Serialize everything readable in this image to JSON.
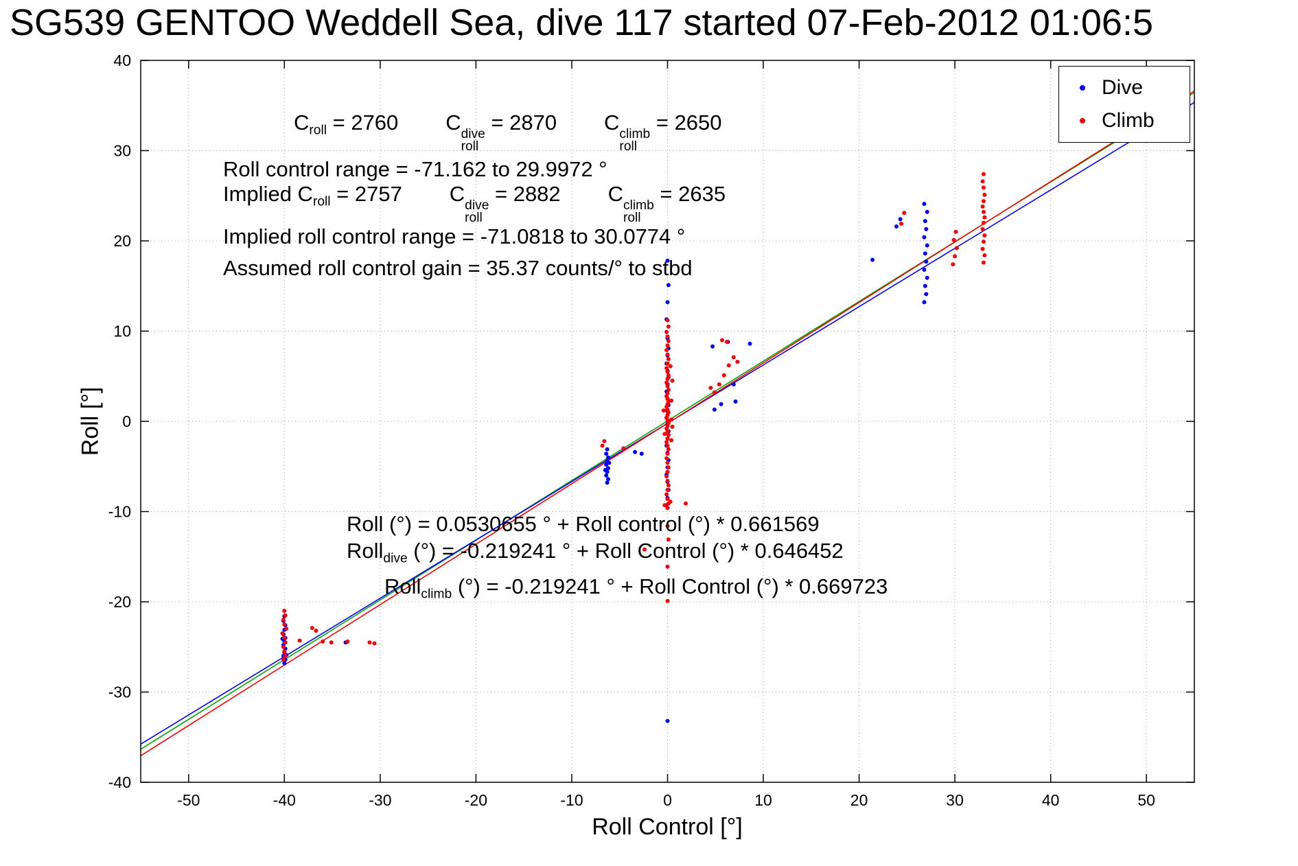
{
  "chart_data": {
    "type": "scatter",
    "title": "SG539 GENTOO Weddell Sea, dive 117 started 07-Feb-2012 01:06:5",
    "xlabel": "Roll Control [°]",
    "ylabel": "Roll [°]",
    "xlim": [
      -55,
      55
    ],
    "ylim": [
      -40,
      40
    ],
    "xticks": [
      -50,
      -40,
      -30,
      -20,
      -10,
      0,
      10,
      20,
      30,
      40,
      50
    ],
    "yticks": [
      -40,
      -30,
      -20,
      -10,
      0,
      10,
      20,
      30,
      40
    ],
    "grid": true,
    "legend_position": "top-right",
    "series": [
      {
        "name": "Dive",
        "color": "#0000ff",
        "marker": "dot",
        "points": [
          [
            -40,
            -21.6
          ],
          [
            -40.1,
            -22.1
          ],
          [
            -39.9,
            -22.6
          ],
          [
            -40,
            -23.1
          ],
          [
            -40.1,
            -23.6
          ],
          [
            -39.9,
            -24
          ],
          [
            -40,
            -24.4
          ],
          [
            -40.1,
            -24.8
          ],
          [
            -39.9,
            -25.2
          ],
          [
            -40,
            -25.6
          ],
          [
            -40.1,
            -26
          ],
          [
            -39.9,
            -26.4
          ],
          [
            -40,
            -26.8
          ],
          [
            -39.8,
            -25.9
          ],
          [
            -40.2,
            -24.1
          ],
          [
            -33.6,
            -24.5
          ],
          [
            -6.3,
            -3.1
          ],
          [
            -6.4,
            -3.6
          ],
          [
            -6.2,
            -4
          ],
          [
            -6.3,
            -4.4
          ],
          [
            -6.4,
            -4.8
          ],
          [
            -6.2,
            -5.2
          ],
          [
            -6.3,
            -5.6
          ],
          [
            -6.4,
            -6
          ],
          [
            -6.2,
            -6.4
          ],
          [
            -6.3,
            -6.8
          ],
          [
            -6.1,
            -4.6
          ],
          [
            -6.5,
            -5.4
          ],
          [
            -3.4,
            -3.4
          ],
          [
            -2.7,
            -3.6
          ],
          [
            0,
            17.8
          ],
          [
            0.1,
            15.1
          ],
          [
            0,
            13.2
          ],
          [
            -0.1,
            11.3
          ],
          [
            0,
            9.2
          ],
          [
            0.1,
            8.1
          ],
          [
            0,
            7.3
          ],
          [
            -0.1,
            6.4
          ],
          [
            0,
            5.6
          ],
          [
            0.1,
            4.9
          ],
          [
            0,
            4.1
          ],
          [
            -0.1,
            3.3
          ],
          [
            0,
            2.5
          ],
          [
            0.1,
            1.8
          ],
          [
            0,
            1.1
          ],
          [
            -0.1,
            0.4
          ],
          [
            0,
            -0.3
          ],
          [
            0.1,
            -1.1
          ],
          [
            0,
            -1.9
          ],
          [
            -0.1,
            -2.7
          ],
          [
            0,
            -3.5
          ],
          [
            0.1,
            -4.3
          ],
          [
            0,
            -5.1
          ],
          [
            -0.1,
            -5.9
          ],
          [
            0,
            -6.7
          ],
          [
            0.1,
            -7.6
          ],
          [
            0,
            -8.5
          ],
          [
            -0.1,
            -9.3
          ],
          [
            0,
            -33.2
          ],
          [
            4.9,
            1.3
          ],
          [
            5.6,
            1.9
          ],
          [
            6.3,
            8.8
          ],
          [
            7.1,
            2.2
          ],
          [
            6.9,
            4.1
          ],
          [
            4.7,
            8.3
          ],
          [
            8.6,
            8.6
          ],
          [
            26.8,
            13.2
          ],
          [
            27,
            14.1
          ],
          [
            26.9,
            15
          ],
          [
            27.1,
            15.9
          ],
          [
            26.8,
            16.8
          ],
          [
            27,
            17.7
          ],
          [
            26.9,
            18.6
          ],
          [
            27.1,
            19.5
          ],
          [
            26.8,
            20.4
          ],
          [
            27,
            21.3
          ],
          [
            26.9,
            22.2
          ],
          [
            27.1,
            23.2
          ],
          [
            26.8,
            24.1
          ],
          [
            23.9,
            21.6
          ],
          [
            24.3,
            22.4
          ],
          [
            21.4,
            17.9
          ]
        ]
      },
      {
        "name": "Climb",
        "color": "#ff0000",
        "marker": "dot",
        "points": [
          [
            -40,
            -21
          ],
          [
            -39.9,
            -21.5
          ],
          [
            -40.1,
            -22
          ],
          [
            -40,
            -22.5
          ],
          [
            -39.8,
            -23
          ],
          [
            -40.2,
            -23.5
          ],
          [
            -40,
            -24
          ],
          [
            -39.9,
            -24.5
          ],
          [
            -40.1,
            -25
          ],
          [
            -40,
            -25.5
          ],
          [
            -39.9,
            -26
          ],
          [
            -40.1,
            -26.4
          ],
          [
            -38.4,
            -24.3
          ],
          [
            -37.1,
            -22.9
          ],
          [
            -36.7,
            -23.2
          ],
          [
            -36,
            -24.4
          ],
          [
            -35.1,
            -24.5
          ],
          [
            -33.4,
            -24.4
          ],
          [
            -31.1,
            -24.5
          ],
          [
            -30.6,
            -24.6
          ],
          [
            -6.6,
            -2.2
          ],
          [
            -6.8,
            -2.7
          ],
          [
            -4.6,
            -3
          ],
          [
            -2.4,
            -14.2
          ],
          [
            0,
            11.2
          ],
          [
            0.1,
            10.5
          ],
          [
            -0.1,
            9.9
          ],
          [
            0,
            9.4
          ],
          [
            0.1,
            8.9
          ],
          [
            0,
            8.4
          ],
          [
            -0.1,
            7.9
          ],
          [
            0,
            7.4
          ],
          [
            0.1,
            6.9
          ],
          [
            0,
            6.4
          ],
          [
            -0.1,
            5.9
          ],
          [
            0,
            5.5
          ],
          [
            0.1,
            5.1
          ],
          [
            0,
            4.7
          ],
          [
            -0.1,
            4.3
          ],
          [
            0,
            3.9
          ],
          [
            0.1,
            3.5
          ],
          [
            0,
            3.1
          ],
          [
            -0.1,
            2.8
          ],
          [
            0,
            2.5
          ],
          [
            0.1,
            2.2
          ],
          [
            0,
            1.9
          ],
          [
            -0.1,
            1.6
          ],
          [
            0,
            1.3
          ],
          [
            0.1,
            1
          ],
          [
            0,
            0.7
          ],
          [
            -0.1,
            0.4
          ],
          [
            0,
            0.1
          ],
          [
            0.1,
            -0.2
          ],
          [
            0,
            -0.5
          ],
          [
            -0.1,
            -0.8
          ],
          [
            0,
            -1.1
          ],
          [
            0.1,
            -1.5
          ],
          [
            0,
            -1.9
          ],
          [
            -0.1,
            -2.3
          ],
          [
            0,
            -2.7
          ],
          [
            0.1,
            -3.1
          ],
          [
            0,
            -3.6
          ],
          [
            -0.1,
            -4.1
          ],
          [
            0,
            -4.6
          ],
          [
            0.1,
            -5.1
          ],
          [
            0,
            -5.6
          ],
          [
            -0.1,
            -6.1
          ],
          [
            0,
            -6.6
          ],
          [
            0.1,
            -7.1
          ],
          [
            0,
            -7.6
          ],
          [
            -0.1,
            -8.1
          ],
          [
            0,
            -8.6
          ],
          [
            0.1,
            -9.1
          ],
          [
            0,
            -9.6
          ],
          [
            0.3,
            -8.9
          ],
          [
            -0.3,
            -9.3
          ],
          [
            0.4,
            0.2
          ],
          [
            0.5,
            -0.6
          ],
          [
            0.4,
            2.3
          ],
          [
            0.5,
            4.5
          ],
          [
            0.3,
            6.1
          ],
          [
            0.4,
            -2.1
          ],
          [
            -0.4,
            1.2
          ],
          [
            -0.3,
            -1.4
          ],
          [
            0,
            -11.6
          ],
          [
            0.1,
            -13.1
          ],
          [
            0,
            -16.1
          ],
          [
            0,
            -19.9
          ],
          [
            1.9,
            -9.1
          ],
          [
            4.9,
            3.2
          ],
          [
            5.4,
            4.1
          ],
          [
            5.9,
            5.1
          ],
          [
            6.4,
            6.2
          ],
          [
            6.9,
            7.1
          ],
          [
            6.2,
            8.8
          ],
          [
            4.5,
            3.7
          ],
          [
            5.7,
            9
          ],
          [
            7.3,
            6.6
          ],
          [
            29.8,
            17.4
          ],
          [
            30,
            18.3
          ],
          [
            30.2,
            19.2
          ],
          [
            29.9,
            20.1
          ],
          [
            30.1,
            21
          ],
          [
            33,
            17.6
          ],
          [
            33.1,
            18.4
          ],
          [
            32.9,
            19.1
          ],
          [
            33,
            19.9
          ],
          [
            33.1,
            20.6
          ],
          [
            32.9,
            21.3
          ],
          [
            33,
            22
          ],
          [
            33.1,
            22.6
          ],
          [
            33,
            23.2
          ],
          [
            32.9,
            23.8
          ],
          [
            33,
            24.4
          ],
          [
            33.1,
            25.1
          ],
          [
            33,
            25.9
          ],
          [
            32.9,
            26.6
          ],
          [
            33,
            27.4
          ],
          [
            24.4,
            21.9
          ],
          [
            24.7,
            23.1
          ]
        ]
      }
    ],
    "fit_lines": [
      {
        "name": "all",
        "color": "#00aa00",
        "intercept": 0.0530655,
        "slope": 0.661569
      },
      {
        "name": "dive",
        "color": "#0000ff",
        "intercept": -0.219241,
        "slope": 0.646452
      },
      {
        "name": "climb",
        "color": "#ff0000",
        "intercept": -0.219241,
        "slope": 0.669723
      }
    ],
    "stats": {
      "C_roll": 2760,
      "C_roll_dive": 2870,
      "C_roll_climb": 2650,
      "roll_control_range_deg": [
        -71.162,
        29.9972
      ],
      "implied_C_roll": 2757,
      "implied_C_roll_dive": 2882,
      "implied_C_roll_climb": 2635,
      "implied_roll_control_range_deg": [
        -71.0818,
        30.0774
      ],
      "assumed_roll_control_gain": "35.37 counts/° to stbd"
    }
  },
  "annotations": {
    "ann1": {
      "segments": [
        {
          "t": "C"
        },
        {
          "sub": "roll"
        },
        {
          "t": " = 2760        "
        },
        {
          "t": "C"
        },
        {
          "sup": "dive",
          "sub": "roll"
        },
        {
          "t": " = 2870        "
        },
        {
          "t": "C"
        },
        {
          "sup": "climb",
          "sub": "roll"
        },
        {
          "t": " = 2650"
        }
      ]
    },
    "ann2": {
      "segments": [
        {
          "t": "Roll control range = -71.162 to 29.9972 °"
        }
      ]
    },
    "ann3": {
      "segments": [
        {
          "t": "Implied C"
        },
        {
          "sub": "roll"
        },
        {
          "t": " = 2757        "
        },
        {
          "t": "C"
        },
        {
          "sup": "dive",
          "sub": "roll"
        },
        {
          "t": " = 2882        "
        },
        {
          "t": "C"
        },
        {
          "sup": "climb",
          "sub": "roll"
        },
        {
          "t": " = 2635"
        }
      ]
    },
    "ann4": {
      "segments": [
        {
          "t": "Implied roll control range = -71.0818 to 30.0774 °"
        }
      ]
    },
    "ann5": {
      "segments": [
        {
          "t": "Assumed roll control gain = 35.37 counts/° to stbd"
        }
      ]
    },
    "ann6": {
      "segments": [
        {
          "t": "Roll (°) = 0.0530655 ° + Roll control (°) * 0.661569"
        }
      ]
    },
    "ann7": {
      "segments": [
        {
          "t": "Roll"
        },
        {
          "sub": "dive"
        },
        {
          "t": " (°) = -0.219241 ° + Roll Control (°) * 0.646452"
        }
      ]
    },
    "ann8": {
      "segments": [
        {
          "t": "Roll"
        },
        {
          "sub": "climb"
        },
        {
          "t": " (°) = -0.219241 ° + Roll Control (°) * 0.669723"
        }
      ]
    }
  }
}
